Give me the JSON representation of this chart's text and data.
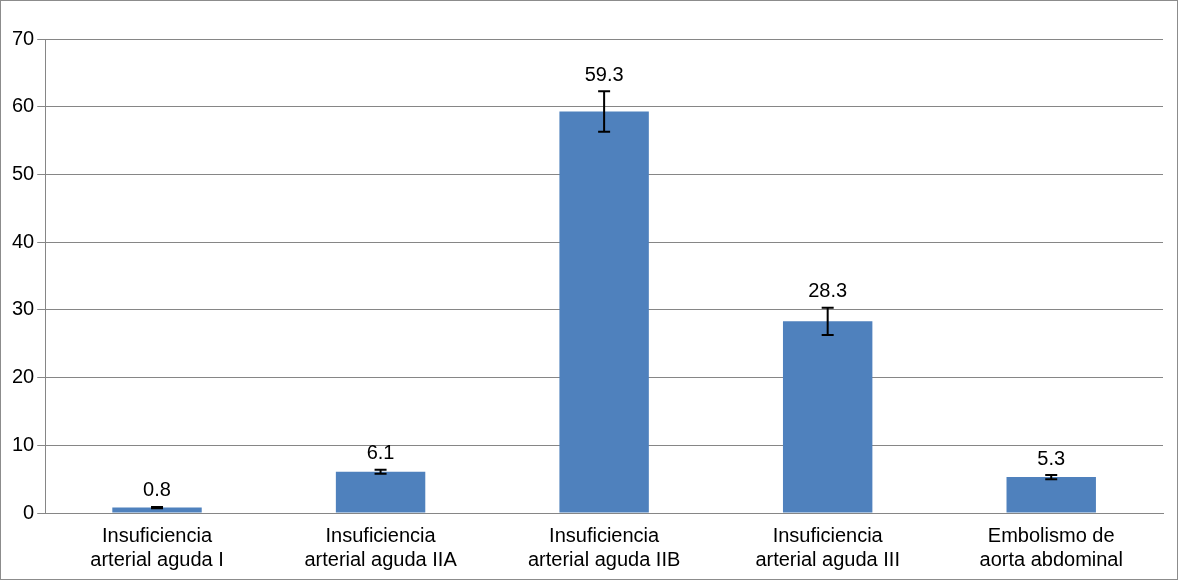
{
  "chart_data": {
    "type": "bar",
    "categories": [
      "Insuficiencia arterial aguda I",
      "Insuficiencia arterial aguda IIA",
      "Insuficiencia arterial aguda IIB",
      "Insuficiencia arterial aguda III",
      "Embolismo de aorta abdominal"
    ],
    "values": [
      0.8,
      6.1,
      59.3,
      28.3,
      5.3
    ],
    "errors": [
      0.1,
      0.3,
      3,
      2,
      0.3
    ],
    "color": "#4f81bd",
    "ylim": [
      0,
      70
    ],
    "yticks": [
      0,
      10,
      20,
      30,
      40,
      50,
      60,
      70
    ],
    "grid": "y",
    "data_labels": true,
    "legend": false
  }
}
